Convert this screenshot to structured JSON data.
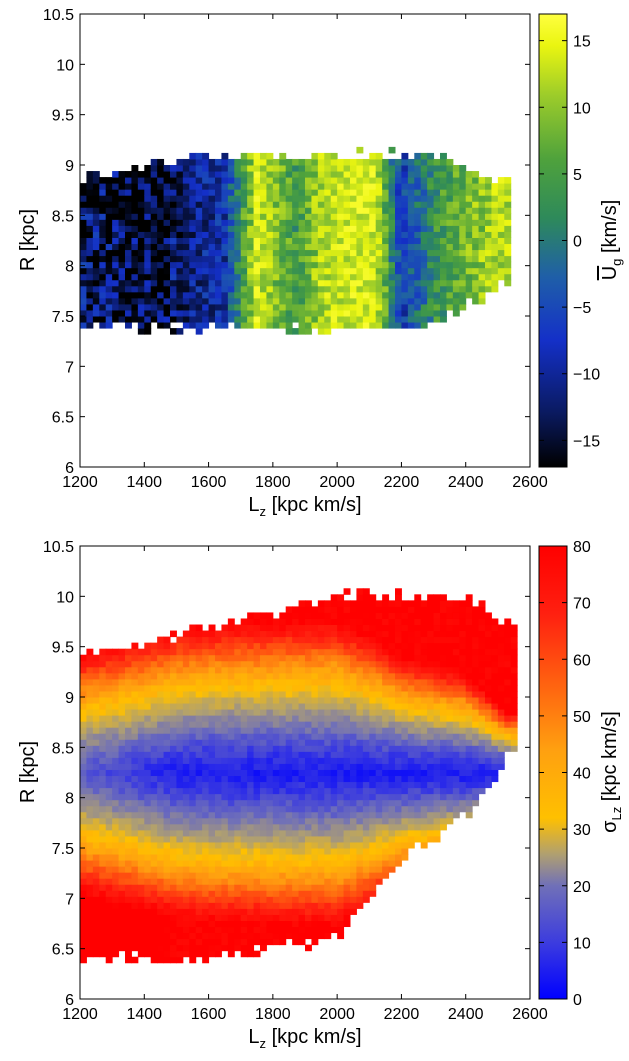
{
  "chart_data": [
    {
      "type": "heatmap",
      "title": "",
      "xlabel": "L_z [kpc km/s]",
      "xlabel_main": "L",
      "xlabel_sub": "z",
      "xlabel_rest": " [kpc km/s]",
      "ylabel": "R [kpc]",
      "xlim": [
        1200,
        2600
      ],
      "ylim": [
        6,
        10.5
      ],
      "xticks": [
        "1200",
        "1400",
        "1600",
        "1800",
        "2000",
        "2200",
        "2400",
        "2600"
      ],
      "yticks": [
        "6",
        "6.5",
        "7",
        "7.5",
        "8",
        "8.5",
        "9",
        "9.5",
        "10",
        "10.5"
      ],
      "colorbar": {
        "label": "U_g [km/s] (overlined U)",
        "label_main": "U",
        "label_sub": "g",
        "label_rest": " [km/s]",
        "range": [
          -17,
          17
        ],
        "ticks": [
          "−15",
          "−10",
          "−5",
          "0",
          "5",
          "10",
          "15"
        ],
        "tick_values": [
          -15,
          -10,
          -5,
          0,
          5,
          10,
          15
        ],
        "colormap": [
          "#000000",
          "#0a1a60",
          "#1430c8",
          "#1f5fa8",
          "#2e8a5a",
          "#4fa23c",
          "#9ccc2a",
          "#eaf510",
          "#ffff40"
        ]
      },
      "data_extent": {
        "Lz_range": [
          1200,
          2540
        ],
        "R_range": [
          7.35,
          9.1
        ],
        "description_points": [
          {
            "Lz": 1200,
            "R_low": 7.4,
            "R_high": 8.85
          },
          {
            "Lz": 1600,
            "R_low": 7.38,
            "R_high": 9.1
          },
          {
            "Lz": 2000,
            "R_low": 7.35,
            "R_high": 9.1
          },
          {
            "Lz": 2300,
            "R_low": 7.4,
            "R_high": 9.1
          },
          {
            "Lz": 2500,
            "R_low": 7.8,
            "R_high": 8.85
          }
        ],
        "mean_U_profile": [
          {
            "Lz": 1250,
            "U": -13
          },
          {
            "Lz": 1350,
            "U": -15
          },
          {
            "Lz": 1450,
            "U": -16
          },
          {
            "Lz": 1550,
            "U": -11
          },
          {
            "Lz": 1650,
            "U": -9
          },
          {
            "Lz": 1750,
            "U": 12
          },
          {
            "Lz": 1820,
            "U": 6
          },
          {
            "Lz": 1880,
            "U": 2
          },
          {
            "Lz": 1950,
            "U": 10
          },
          {
            "Lz": 2050,
            "U": 12
          },
          {
            "Lz": 2120,
            "U": 12
          },
          {
            "Lz": 2200,
            "U": -8
          },
          {
            "Lz": 2300,
            "U": 1
          },
          {
            "Lz": 2400,
            "U": 6
          },
          {
            "Lz": 2500,
            "U": 10
          }
        ]
      }
    },
    {
      "type": "heatmap",
      "title": "",
      "xlabel": "L_z [kpc km/s]",
      "xlabel_main": "L",
      "xlabel_sub": "z",
      "xlabel_rest": " [kpc km/s]",
      "ylabel": "R [kpc]",
      "xlim": [
        1200,
        2600
      ],
      "ylim": [
        6,
        10.5
      ],
      "xticks": [
        "1200",
        "1400",
        "1600",
        "1800",
        "2000",
        "2200",
        "2400",
        "2600"
      ],
      "yticks": [
        "6",
        "6.5",
        "7",
        "7.5",
        "8",
        "8.5",
        "9",
        "9.5",
        "10",
        "10.5"
      ],
      "colorbar": {
        "label": "σ_Lz [kpc km/s]",
        "label_main": "σ",
        "label_sub": "Lz",
        "label_rest": " [kpc km/s]",
        "range": [
          0,
          80
        ],
        "ticks": [
          "0",
          "10",
          "20",
          "30",
          "40",
          "50",
          "60",
          "70",
          "80"
        ],
        "tick_values": [
          0,
          10,
          20,
          30,
          40,
          50,
          60,
          70,
          80
        ],
        "colormap": [
          "#0000ff",
          "#3a3ae0",
          "#7070b8",
          "#b0a070",
          "#ffc000",
          "#ffa010",
          "#ff6010",
          "#ff2010",
          "#ff0000"
        ]
      },
      "data_extent": {
        "Lz_range": [
          1200,
          2560
        ],
        "description_points": [
          {
            "Lz": 1200,
            "R_low": 6.4,
            "R_high": 9.4
          },
          {
            "Lz": 1600,
            "R_low": 6.4,
            "R_high": 9.7
          },
          {
            "Lz": 2000,
            "R_low": 6.6,
            "R_high": 10.0
          },
          {
            "Lz": 2200,
            "R_low": 7.4,
            "R_high": 10.0
          },
          {
            "Lz": 2400,
            "R_low": 7.8,
            "R_high": 10.0
          },
          {
            "Lz": 2550,
            "R_low": 8.5,
            "R_high": 9.7
          }
        ],
        "ridge_R": 8.25,
        "sigma_min": 5,
        "sigma_max": 80
      }
    }
  ]
}
